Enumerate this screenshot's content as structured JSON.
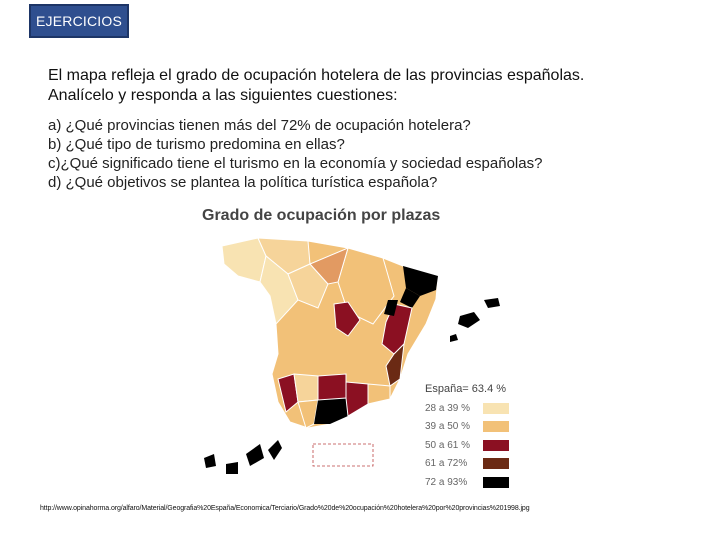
{
  "header": {
    "tag": "EJERCICIOS"
  },
  "intro": {
    "line1": "El mapa refleja el grado de ocupación hotelera de las provincias españolas.",
    "line2": "Analícelo y responda a las siguientes cuestiones:"
  },
  "questions": [
    "a) ¿Qué provincias tienen más del 72% de ocupación hotelera?",
    "b) ¿Qué tipo de turismo predomina en ellas?",
    "c)¿Qué significado tiene el turismo en la economía y sociedad españolas?",
    "d) ¿Qué objetivos se plantea la política turística española?"
  ],
  "map": {
    "title": "Grado de ocupación por plazas",
    "legend_title": "España= 63.4 %",
    "legend": [
      {
        "label": "28 a 39 %",
        "color": "#f8e3b2"
      },
      {
        "label": "39 a 50 %",
        "color": "#f2c178"
      },
      {
        "label": "50 a 61 %",
        "color": "#8b1022"
      },
      {
        "label": "61 a 72%",
        "color": "#6b2a14"
      },
      {
        "label": "72 a 93%",
        "color": "#000000"
      }
    ]
  },
  "source": "http://www.opinahorma.org/alfaro/Material/Geografia%20España/Economica/Terciario/Grado%20de%20ocupación%20hotelera%20por%20provincias%201998.jpg"
}
